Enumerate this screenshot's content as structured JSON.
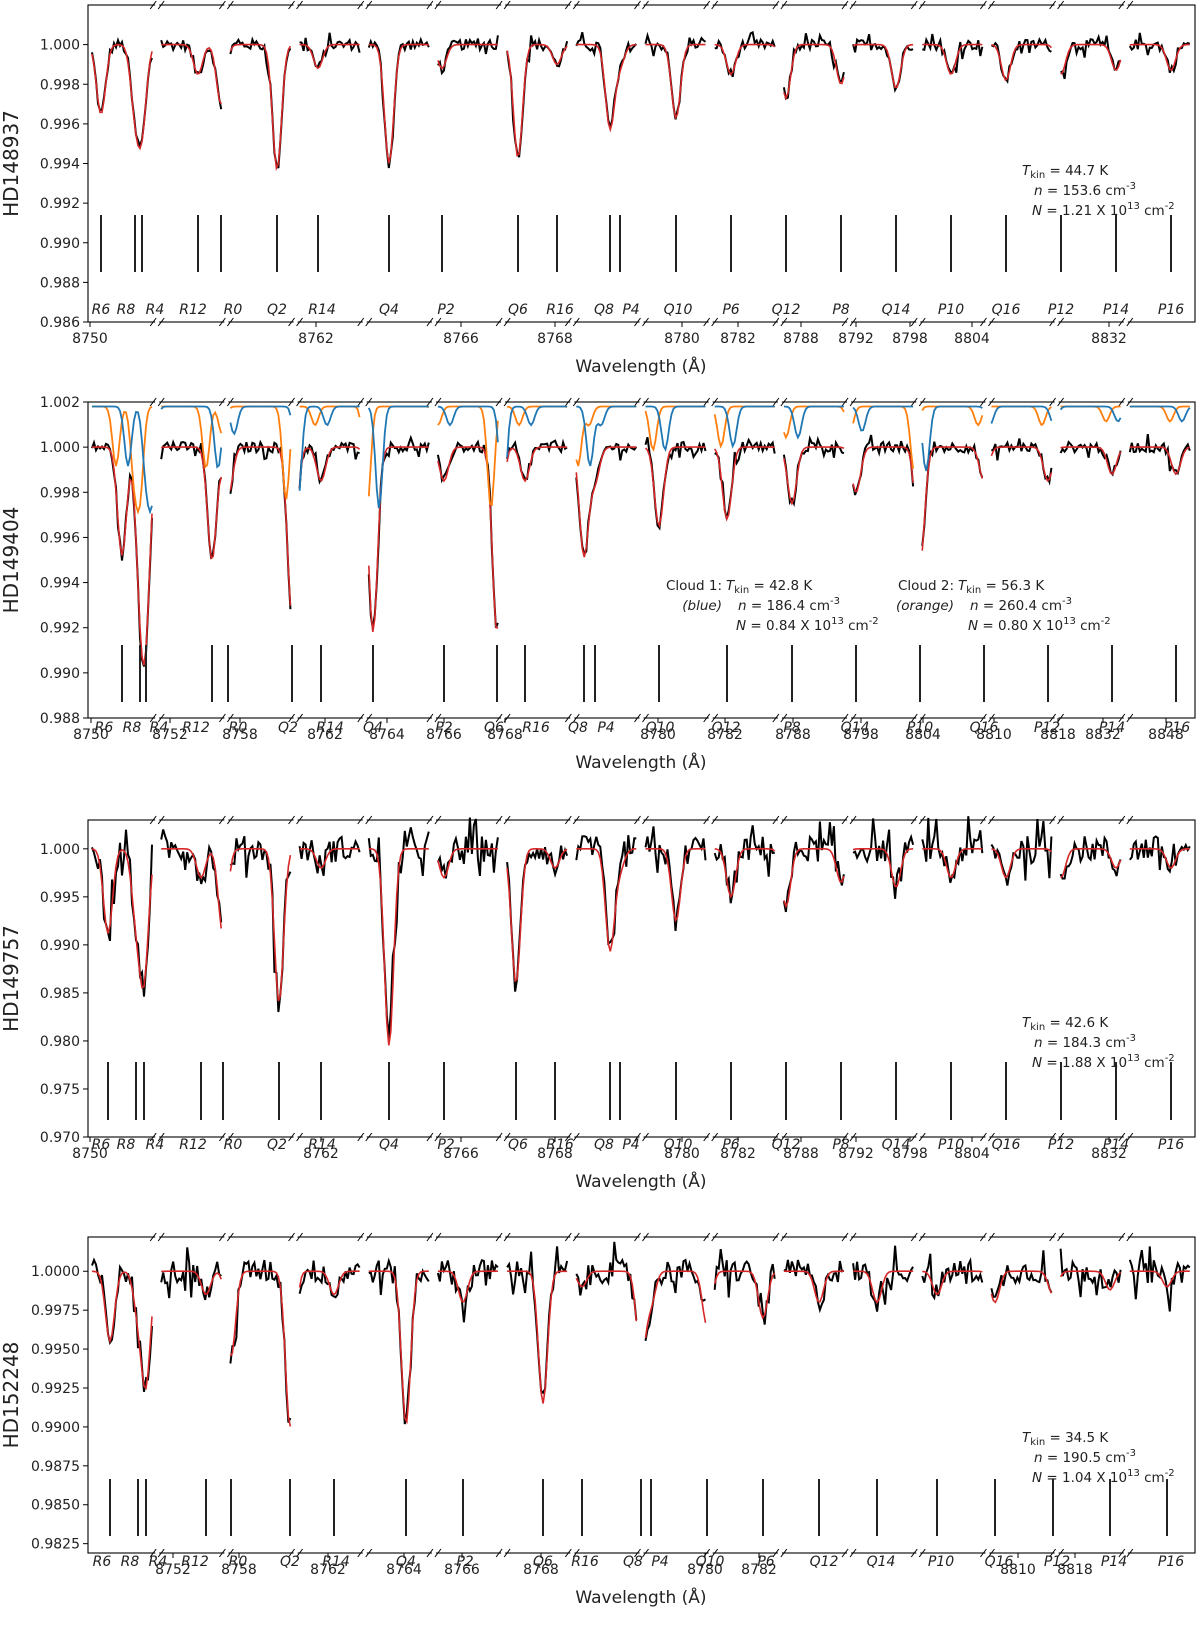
{
  "chart_data": [
    {
      "type": "line",
      "star": "HD148937",
      "ylabel": "HD148937",
      "xlabel": "Wavelength (Å)",
      "ylim": [
        0.986,
        1.002
      ],
      "yticks": [
        "0.986",
        "0.988",
        "0.990",
        "0.992",
        "0.994",
        "0.996",
        "0.998",
        "1.000"
      ],
      "xticks": [
        "8750",
        "8762",
        "8766",
        "8768",
        "8780",
        "8782",
        "8788",
        "8792",
        "8798",
        "8804",
        "8832"
      ],
      "line_labels": [
        "R6",
        "R8",
        "R4",
        "R12",
        "R0",
        "Q2",
        "R14",
        "Q4",
        "P2",
        "Q6",
        "R16",
        "Q8",
        "P4",
        "Q10",
        "P6",
        "Q12",
        "P8",
        "Q14",
        "P10",
        "Q16",
        "P12",
        "P14",
        "P16"
      ],
      "line_depths": [
        0.9965,
        0.997,
        0.996,
        0.9985,
        0.997,
        0.9937,
        0.9988,
        0.994,
        0.9988,
        0.9943,
        0.999,
        0.9958,
        0.999,
        0.9963,
        0.9985,
        0.9973,
        0.998,
        0.9978,
        0.9985,
        0.9982,
        0.9985,
        0.9987,
        0.9987
      ],
      "clouds": [
        {
          "name": "",
          "series": "",
          "Tkin": "44.7",
          "n": "153.6",
          "N": "1.21"
        }
      ]
    },
    {
      "type": "line",
      "star": "HD149404",
      "ylabel": "HD149404",
      "xlabel": "Wavelength (Å)",
      "ylim": [
        0.988,
        1.002
      ],
      "yticks": [
        "0.988",
        "0.990",
        "0.992",
        "0.994",
        "0.996",
        "0.998",
        "1.000",
        "1.002"
      ],
      "xticks": [
        "8750",
        "8752",
        "8758",
        "8762",
        "8764",
        "8766",
        "8768",
        "8780",
        "8782",
        "8788",
        "8798",
        "8804",
        "8810",
        "8818",
        "8832",
        "8848"
      ],
      "line_labels": [
        "R6",
        "R8",
        "R4",
        "R12",
        "R0",
        "Q2",
        "R14",
        "Q4",
        "P2",
        "Q6",
        "R16",
        "Q8",
        "P4",
        "Q10",
        "Q12",
        "P8",
        "Q14",
        "P10",
        "Q16",
        "P12",
        "P14",
        "P16"
      ],
      "line_depths": [
        0.9952,
        0.9948,
        0.9932,
        0.995,
        0.9978,
        0.9925,
        0.9985,
        0.9918,
        0.9985,
        0.9918,
        0.9985,
        0.9952,
        0.9985,
        0.9965,
        0.9968,
        0.9975,
        0.998,
        0.9948,
        0.9985,
        0.9985,
        0.9988,
        0.9988
      ],
      "series_colors": {
        "data": "#000000",
        "fit": "#d62728",
        "cloud1": "#1f77b4",
        "cloud2": "#ff7f0e"
      },
      "clouds": [
        {
          "name": "Cloud 1:",
          "series": "(blue)",
          "Tkin": "42.8",
          "n": "186.4",
          "N": "0.84"
        },
        {
          "name": "Cloud 2:",
          "series": "(orange)",
          "Tkin": "56.3",
          "n": "260.4",
          "N": "0.80"
        }
      ]
    },
    {
      "type": "line",
      "star": "HD149757",
      "ylabel": "HD149757",
      "xlabel": "Wavelength (Å)",
      "ylim": [
        0.97,
        1.003
      ],
      "yticks": [
        "0.970",
        "0.975",
        "0.980",
        "0.985",
        "0.990",
        "0.995",
        "1.000"
      ],
      "xticks": [
        "8750",
        "8762",
        "8766",
        "8768",
        "8780",
        "8782",
        "8788",
        "8792",
        "8798",
        "8804",
        "8832"
      ],
      "line_labels": [
        "R6",
        "R8",
        "R4",
        "R12",
        "R0",
        "Q2",
        "R14",
        "Q4",
        "P2",
        "Q6",
        "R16",
        "Q8",
        "P4",
        "Q10",
        "P6",
        "Q12",
        "P8",
        "Q14",
        "P10",
        "Q16",
        "P12",
        "P14",
        "P16"
      ],
      "line_depths": [
        0.9912,
        0.9935,
        0.987,
        0.997,
        0.991,
        0.984,
        0.998,
        0.9795,
        0.997,
        0.986,
        0.998,
        0.9895,
        0.998,
        0.9925,
        0.995,
        0.994,
        0.9965,
        0.996,
        0.997,
        0.997,
        0.997,
        0.998,
        0.998
      ],
      "clouds": [
        {
          "name": "",
          "series": "",
          "Tkin": "42.6",
          "n": "184.3",
          "N": "1.88"
        }
      ]
    },
    {
      "type": "line",
      "star": "HD152248",
      "ylabel": "HD152248",
      "xlabel": "Wavelength (Å)",
      "ylim": [
        0.9819,
        1.0022
      ],
      "yticks": [
        "0.9825",
        "0.9850",
        "0.9875",
        "0.9900",
        "0.9925",
        "0.9950",
        "0.9975",
        "1.0000"
      ],
      "xticks": [
        "8752",
        "8758",
        "8762",
        "8764",
        "8766",
        "8768",
        "8780",
        "8782",
        "8810",
        "8818"
      ],
      "line_labels": [
        "R6",
        "R8",
        "R4",
        "R12",
        "R0",
        "Q2",
        "R14",
        "Q4",
        "P2",
        "Q6",
        "R16",
        "Q8",
        "P4",
        "Q10",
        "P6",
        "Q12",
        "Q14",
        "P10",
        "Q16",
        "P12",
        "P14",
        "P16"
      ],
      "line_depths": [
        0.9955,
        0.9975,
        0.993,
        0.9985,
        0.9945,
        0.99,
        0.9985,
        0.9902,
        0.998,
        0.9915,
        0.999,
        0.9945,
        0.998,
        0.9965,
        0.997,
        0.998,
        0.998,
        0.9985,
        0.998,
        0.9985,
        0.9988,
        0.999
      ],
      "clouds": [
        {
          "name": "",
          "series": "",
          "Tkin": "34.5",
          "n": "190.5",
          "N": "1.04"
        }
      ]
    }
  ]
}
